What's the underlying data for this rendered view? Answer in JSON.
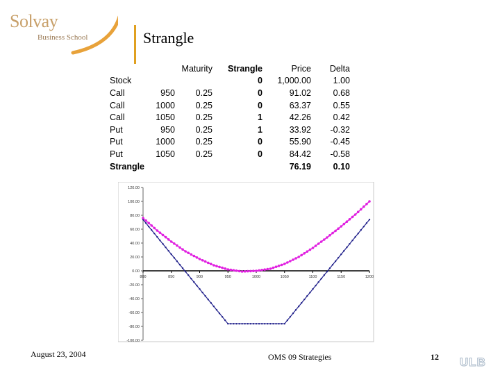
{
  "logo": {
    "brand": "Solvay",
    "school": "Business School",
    "swoosh_color": "#e8a23a"
  },
  "slide": {
    "title": "Strangle"
  },
  "table": {
    "headers": [
      "",
      "",
      "Maturity",
      "Strangle",
      "Price",
      "Delta"
    ],
    "rows": [
      [
        "Stock",
        "",
        "",
        "0",
        "1,000.00",
        "1.00"
      ],
      [
        "Call",
        "950",
        "0.25",
        "0",
        "91.02",
        "0.68"
      ],
      [
        "Call",
        "1000",
        "0.25",
        "0",
        "63.37",
        "0.55"
      ],
      [
        "Call",
        "1050",
        "0.25",
        "1",
        "42.26",
        "0.42"
      ],
      [
        "Put",
        "950",
        "0.25",
        "1",
        "33.92",
        "-0.32"
      ],
      [
        "Put",
        "1000",
        "0.25",
        "0",
        "55.90",
        "-0.45"
      ],
      [
        "Put",
        "1050",
        "0.25",
        "0",
        "84.42",
        "-0.58"
      ]
    ],
    "total": {
      "label": "Strangle",
      "price": "76.19",
      "delta": "0.10"
    }
  },
  "chart_data": {
    "type": "line",
    "ylim": [
      -100,
      120
    ],
    "xlim": [
      800,
      1200
    ],
    "y_ticks": [
      "120.00",
      "100.00",
      "80.00",
      "60.00",
      "40.00",
      "20.00",
      "0.00",
      "-20.00",
      "-40.00",
      "-60.00",
      "-80.00",
      "-100.00"
    ],
    "x_ticks": [
      "800",
      "850",
      "900",
      "950",
      "1000",
      "1050",
      "1100",
      "1150",
      "1200"
    ],
    "grid": false,
    "series": [
      {
        "color": "#1f1f8a",
        "x": [
          800,
          850,
          900,
          925,
          950,
          975,
          1000,
          1025,
          1050,
          1075,
          1100,
          1150,
          1200
        ],
        "y": [
          73.8,
          23.8,
          -26.2,
          -51.2,
          -76.2,
          -76.2,
          -76.2,
          -76.2,
          -76.2,
          -51.2,
          -26.2,
          23.8,
          73.8
        ]
      },
      {
        "color": "#e020e0",
        "x": [
          800,
          825,
          850,
          875,
          900,
          925,
          950,
          975,
          1000,
          1025,
          1050,
          1075,
          1100,
          1125,
          1150,
          1175,
          1200
        ],
        "y": [
          76,
          58,
          42,
          28,
          17,
          8,
          2,
          -1,
          0,
          3,
          10,
          20,
          33,
          48,
          64,
          81,
          100
        ]
      }
    ]
  },
  "footer": {
    "date": "August 23, 2004",
    "course": "OMS 09 Strategies",
    "page": "12",
    "ulb": "ULB"
  }
}
